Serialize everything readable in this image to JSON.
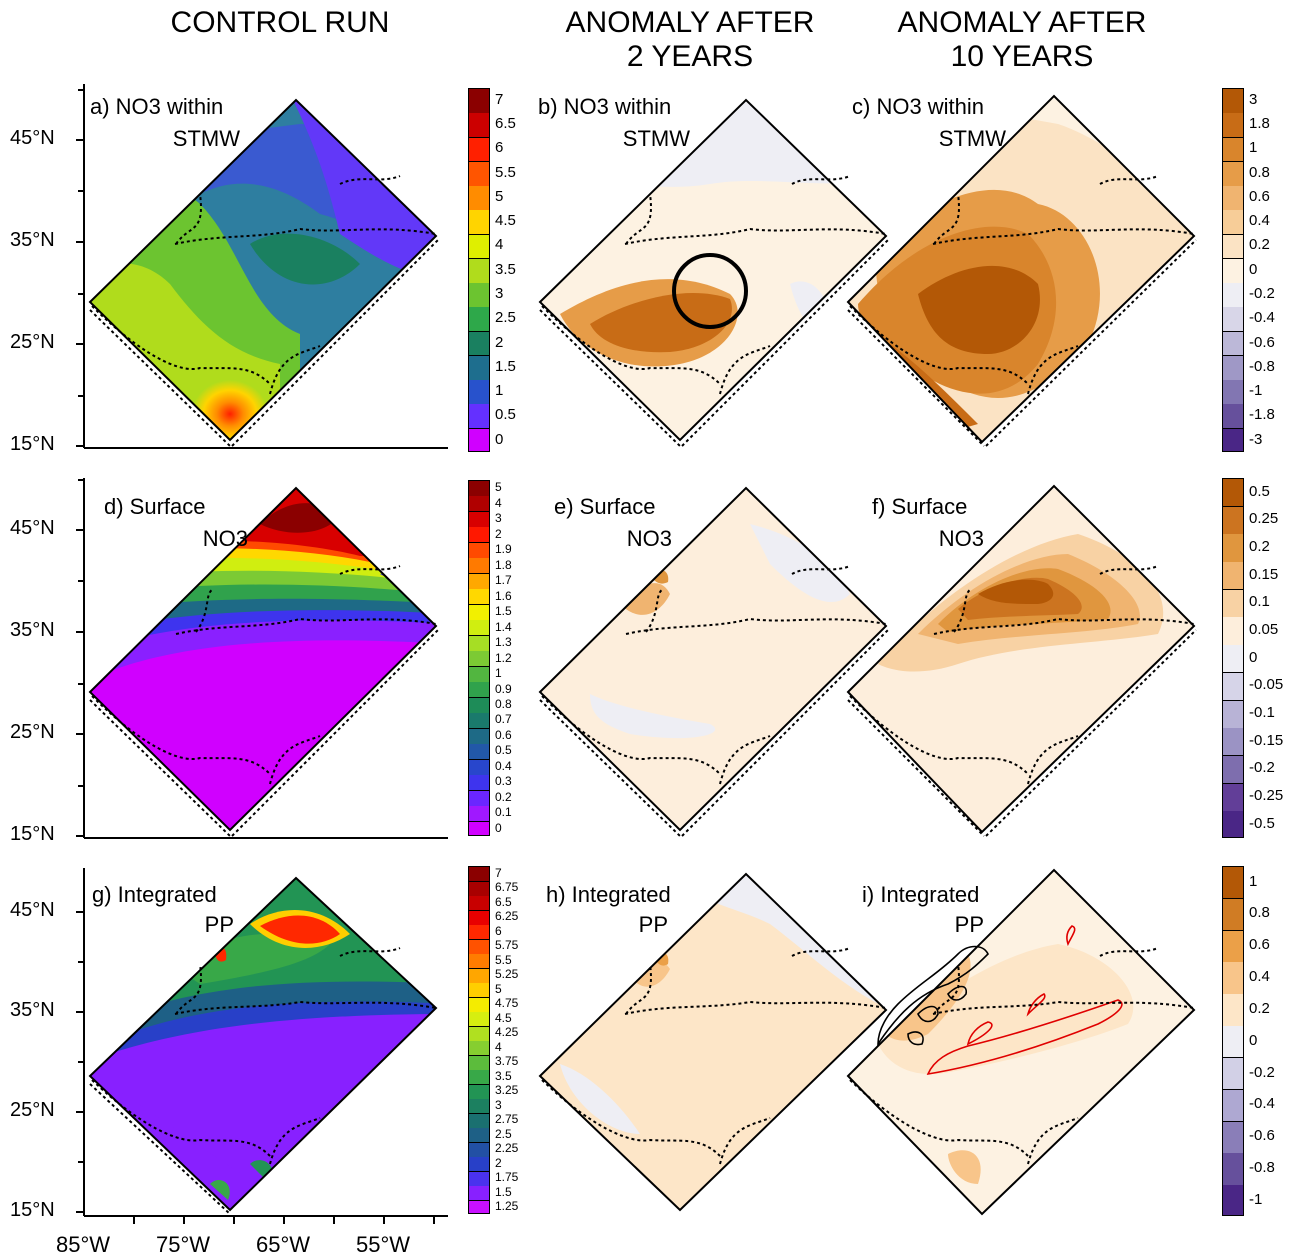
{
  "columns": {
    "control": "CONTROL RUN",
    "anom2_line1": "ANOMALY AFTER",
    "anom2_line2": "2 YEARS",
    "anom10_line1": "ANOMALY AFTER",
    "anom10_line2": "10 YEARS"
  },
  "lat_labels": [
    "45°N",
    "35°N",
    "25°N",
    "15°N"
  ],
  "lon_labels": [
    "85°W",
    "75°W",
    "65°W",
    "55°W"
  ],
  "panels": {
    "a": {
      "line1": "a) NO3 within",
      "line2": "STMW"
    },
    "b": {
      "line1": "b) NO3 within",
      "line2": "STMW"
    },
    "c": {
      "line1": "c) NO3 within",
      "line2": "STMW"
    },
    "d": {
      "line1": "d) Surface",
      "line2": "NO3"
    },
    "e": {
      "line1": "e) Surface",
      "line2": "NO3"
    },
    "f": {
      "line1": "f) Surface",
      "line2": "NO3"
    },
    "g": {
      "line1": "g) Integrated",
      "line2": "PP"
    },
    "h": {
      "line1": "h) Integrated",
      "line2": "PP"
    },
    "i": {
      "line1": "i) Integrated",
      "line2": "PP"
    }
  },
  "colorbars": {
    "control_row1": {
      "labels": [
        "7",
        "6.5",
        "6",
        "5.5",
        "5",
        "4.5",
        "4",
        "3.5",
        "3",
        "2.5",
        "2",
        "1.5",
        "1",
        "0.5",
        "0"
      ],
      "colors": [
        "#8b0000",
        "#cc0000",
        "#ff2000",
        "#ff5500",
        "#ff8c00",
        "#ffd400",
        "#dfef00",
        "#b0dc1c",
        "#6cc430",
        "#2ea84a",
        "#1a8060",
        "#1e6e8e",
        "#2852cc",
        "#6430ff",
        "#d000ff"
      ]
    },
    "control_row2": {
      "labels": [
        "5",
        "4",
        "3",
        "2",
        "1.9",
        "1.8",
        "1.7",
        "1.6",
        "1.5",
        "1.4",
        "1.3",
        "1.2",
        "1",
        "0.9",
        "0.8",
        "0.7",
        "0.6",
        "0.5",
        "0.4",
        "0.3",
        "0.2",
        "0.1",
        "0"
      ],
      "colors": [
        "#8b0000",
        "#b00000",
        "#d80000",
        "#ff1800",
        "#ff4a00",
        "#ff7a00",
        "#ffa800",
        "#ffd800",
        "#f2f000",
        "#d0ee10",
        "#a6de24",
        "#7cca34",
        "#52b640",
        "#30a24c",
        "#1e8c58",
        "#1a7a6c",
        "#1e6a86",
        "#2258a8",
        "#2846cc",
        "#3e34ee",
        "#6a26ff",
        "#a018ff",
        "#d000ff"
      ]
    },
    "control_row3": {
      "labels": [
        "7",
        "6.75",
        "6.5",
        "6.25",
        "6",
        "5.75",
        "5.5",
        "5.25",
        "5",
        "4.75",
        "4.5",
        "4.25",
        "4",
        "3.75",
        "3.5",
        "3.25",
        "3",
        "2.75",
        "2.5",
        "2.25",
        "2",
        "1.75",
        "1.5",
        "1.25"
      ],
      "colors": [
        "#8b0000",
        "#a80000",
        "#c80000",
        "#e80000",
        "#ff2800",
        "#ff5200",
        "#ff7c00",
        "#ffa600",
        "#ffce00",
        "#f4ec00",
        "#d6ee10",
        "#b0e020",
        "#86ce30",
        "#5cbc3c",
        "#38a848",
        "#229454",
        "#1c8060",
        "#1a7070",
        "#1e6086",
        "#2250a4",
        "#2840c8",
        "#4a32ee",
        "#8820ff",
        "#c810ff"
      ]
    },
    "anom_row1": {
      "labels": [
        "3",
        "1.8",
        "1",
        "0.8",
        "0.6",
        "0.4",
        "0.2",
        "0",
        "-0.2",
        "-0.4",
        "-0.6",
        "-0.8",
        "-1",
        "-1.8",
        "-3"
      ],
      "colors": [
        "#b35806",
        "#c86c16",
        "#d9852c",
        "#e69c48",
        "#f0b470",
        "#f7cd98",
        "#fbe3c4",
        "#fdf2e2",
        "#eeeef4",
        "#d8d6e8",
        "#bcb8d8",
        "#9f98c6",
        "#8276b2",
        "#66509c",
        "#4a2686"
      ]
    },
    "anom_row2": {
      "labels": [
        "0.5",
        "0.25",
        "0.2",
        "0.15",
        "0.1",
        "0.05",
        "0",
        "-0.05",
        "-0.1",
        "-0.15",
        "-0.2",
        "-0.25",
        "-0.5"
      ],
      "colors": [
        "#b35806",
        "#cc7420",
        "#e0963e",
        "#f0b470",
        "#f8d2a4",
        "#fdeedc",
        "#eeeef4",
        "#d6d4e8",
        "#b8b3d6",
        "#9b93c4",
        "#7e6eae",
        "#623e98",
        "#4a2686"
      ]
    },
    "anom_row3": {
      "labels": [
        "1",
        "0.8",
        "0.6",
        "0.4",
        "0.2",
        "0",
        "-0.2",
        "-0.4",
        "-0.6",
        "-0.8",
        "-1"
      ],
      "colors": [
        "#b35806",
        "#d07c24",
        "#eba048",
        "#f8c58a",
        "#fde6c8",
        "#eeeef4",
        "#d2d0e6",
        "#aea8d2",
        "#8a7eb8",
        "#66509c",
        "#4a2686"
      ]
    }
  }
}
